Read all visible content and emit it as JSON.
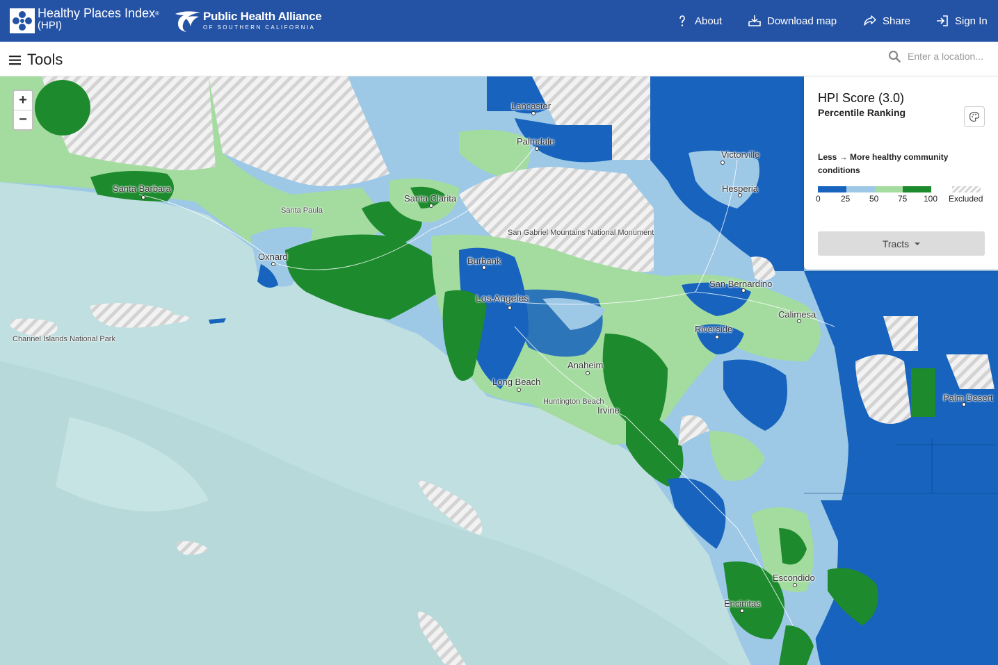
{
  "header": {
    "hpi_title": "Healthy Places Index",
    "hpi_trademark": "®",
    "hpi_abbrev": "(HPI)",
    "pha_title": "Public Health Alliance",
    "pha_subtitle": "OF SOUTHERN CALIFORNIA",
    "nav": [
      {
        "label": "About",
        "icon": "question-icon"
      },
      {
        "label": "Download map",
        "icon": "download-icon"
      },
      {
        "label": "Share",
        "icon": "share-icon"
      },
      {
        "label": "Sign In",
        "icon": "sign-in-icon"
      }
    ],
    "background_color": "#2453a6"
  },
  "toolbar": {
    "tools_label": "Tools",
    "search_placeholder": "Enter a location..."
  },
  "map": {
    "zoom_in": "+",
    "zoom_out": "−",
    "cities": [
      {
        "name": "Santa Barbara"
      },
      {
        "name": "Santa Paula"
      },
      {
        "name": "Oxnard"
      },
      {
        "name": "Lancaster"
      },
      {
        "name": "Palmdale"
      },
      {
        "name": "Santa Clarita"
      },
      {
        "name": "Burbank"
      },
      {
        "name": "Los Angeles"
      },
      {
        "name": "Long Beach"
      },
      {
        "name": "Anaheim"
      },
      {
        "name": "Huntington Beach"
      },
      {
        "name": "Irvine"
      },
      {
        "name": "Victorville"
      },
      {
        "name": "Hesperia"
      },
      {
        "name": "San Bernardino"
      },
      {
        "name": "Riverside"
      },
      {
        "name": "Calimesa"
      },
      {
        "name": "Palm Desert"
      },
      {
        "name": "Escondido"
      },
      {
        "name": "Encinitas"
      }
    ],
    "places": [
      {
        "name": "San Gabriel Mountains National Monument"
      },
      {
        "name": "Channel Islands National Park"
      }
    ],
    "colors": {
      "ocean": "#bfdfe0",
      "q1": "#1763bd",
      "q2": "#9dc8e6",
      "q3": "#a4dca0",
      "q4": "#1d8a2d"
    }
  },
  "legend": {
    "title": "HPI Score (3.0)",
    "subtitle": "Percentile Ranking",
    "description_from": "Less",
    "description_to": "More healthy community conditions",
    "ramp_colors": [
      "#1763bd",
      "#9dc8e6",
      "#a4dca0",
      "#1d8a2d"
    ],
    "ticks": [
      "0",
      "25",
      "50",
      "75",
      "100"
    ],
    "excluded_label": "Excluded",
    "geography_selector": "Tracts"
  }
}
